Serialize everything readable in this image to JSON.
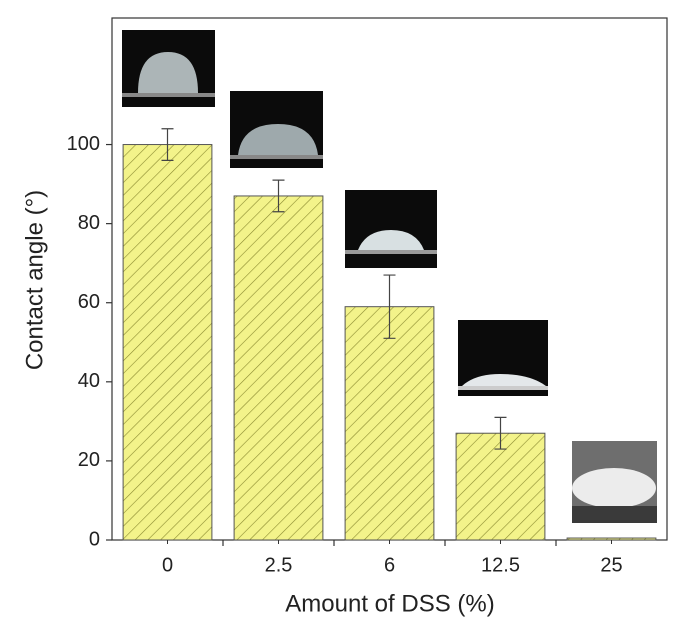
{
  "chart_data": {
    "type": "bar",
    "x_label": "Amount of DSS (%)",
    "y_label": "Contact angle (°)",
    "categories": [
      "0",
      "2.5",
      "6",
      "12.5",
      "25"
    ],
    "values": [
      100,
      87,
      59,
      27,
      0.5
    ],
    "errors": [
      4,
      4,
      8,
      4,
      0
    ],
    "color": "#f3f38a",
    "hatch_color": "#8a8a30",
    "ylim": [
      0,
      132
    ],
    "yticks": [
      0,
      20,
      40,
      60,
      80,
      100
    ],
    "grid": false
  }
}
